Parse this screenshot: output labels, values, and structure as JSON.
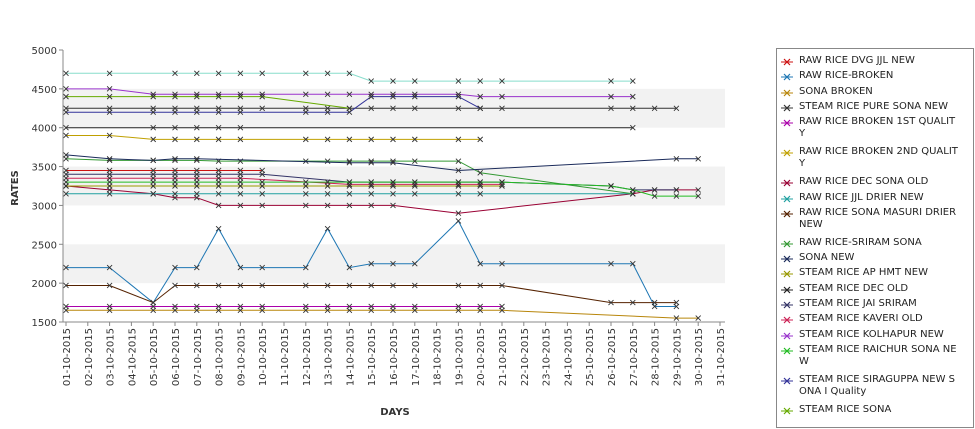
{
  "chart_data": {
    "type": "line",
    "title": "",
    "xlabel": "DAYS",
    "ylabel": "RATES",
    "ylim": [
      1500,
      5000
    ],
    "yticks": [
      1500,
      2000,
      2500,
      3000,
      3500,
      4000,
      4500,
      5000
    ],
    "x": [
      "01-10-2015",
      "02-10-2015",
      "03-10-2015",
      "04-10-2015",
      "05-10-2015",
      "06-10-2015",
      "07-10-2015",
      "08-10-2015",
      "09-10-2015",
      "10-10-2015",
      "11-10-2015",
      "12-10-2015",
      "13-10-2015",
      "14-10-2015",
      "15-10-2015",
      "16-10-2015",
      "17-10-2015",
      "18-10-2015",
      "19-10-2015",
      "20-10-2015",
      "21-10-2015",
      "22-10-2015",
      "23-10-2015",
      "24-10-2015",
      "25-10-2015",
      "26-10-2015",
      "27-10-2015",
      "28-10-2015",
      "29-10-2015",
      "30-10-2015",
      "31-10-2015"
    ],
    "grid": "alternating horizontal bands",
    "legend_position": "right",
    "series": [
      {
        "name": "RAW RICE DVG JJL NEW",
        "color": "#cc1111",
        "values": [
          3450,
          null,
          3450,
          null,
          3450,
          3450,
          3450,
          3450,
          3450,
          3450,
          null,
          null,
          null,
          null,
          null,
          null,
          null,
          null,
          null,
          null,
          null,
          null,
          null,
          null,
          null,
          null,
          null,
          null,
          null,
          null,
          null
        ]
      },
      {
        "name": "RAW RICE-BROKEN",
        "color": "#1f77b4",
        "values": [
          2200,
          null,
          2200,
          null,
          1750,
          2200,
          2200,
          2700,
          2200,
          2200,
          null,
          2200,
          2700,
          2200,
          2250,
          2250,
          2250,
          null,
          2800,
          2250,
          2250,
          null,
          null,
          null,
          null,
          2250,
          2250,
          1700,
          1700,
          null,
          null
        ]
      },
      {
        "name": "SONA BROKEN",
        "color": "#b8860b",
        "values": [
          1650,
          null,
          1650,
          null,
          1650,
          1650,
          1650,
          1650,
          1650,
          1650,
          null,
          1650,
          1650,
          1650,
          1650,
          1650,
          1650,
          null,
          1650,
          1650,
          1650,
          null,
          null,
          null,
          null,
          null,
          null,
          null,
          1550,
          1550,
          null
        ]
      },
      {
        "name": "STEAM RICE PURE SONA NEW",
        "color": "#333333",
        "values": [
          4250,
          null,
          4250,
          null,
          4250,
          4250,
          4250,
          4250,
          4250,
          4250,
          null,
          4250,
          4250,
          4250,
          4250,
          4250,
          4250,
          null,
          4250,
          4250,
          4250,
          null,
          null,
          null,
          null,
          4250,
          4250,
          4250,
          4250,
          null,
          null
        ]
      },
      {
        "name": "RAW RICE BROKEN 1ST QUALITY",
        "color": "#aa00aa",
        "values": [
          1700,
          null,
          1700,
          null,
          1700,
          1700,
          1700,
          1700,
          1700,
          1700,
          null,
          1700,
          1700,
          1700,
          1700,
          1700,
          1700,
          null,
          1700,
          1700,
          1700,
          null,
          null,
          null,
          null,
          null,
          null,
          null,
          null,
          null,
          null
        ]
      },
      {
        "name": "RAW RICE BROKEN 2ND QUALITY",
        "color": "#c0a000",
        "values": [
          3900,
          null,
          3900,
          null,
          3850,
          3850,
          3850,
          3850,
          3850,
          null,
          null,
          3850,
          3850,
          3850,
          3850,
          3850,
          3850,
          null,
          3850,
          3850,
          null,
          null,
          null,
          null,
          null,
          null,
          null,
          null,
          null,
          null,
          null
        ]
      },
      {
        "name": "RAW RICE DEC SONA OLD",
        "color": "#990033",
        "values": [
          3250,
          null,
          3200,
          null,
          3150,
          3100,
          3100,
          3000,
          3000,
          3000,
          null,
          3000,
          3000,
          3000,
          3000,
          3000,
          null,
          null,
          2900,
          null,
          null,
          null,
          null,
          null,
          null,
          null,
          3150,
          3200,
          3200,
          3200,
          null
        ]
      },
      {
        "name": "RAW RICE JJL DRIER NEW",
        "color": "#20a0a0",
        "values": [
          3150,
          null,
          3150,
          null,
          3150,
          3150,
          3150,
          3150,
          3150,
          3150,
          null,
          3150,
          3150,
          3150,
          3150,
          3150,
          3150,
          null,
          3150,
          3150,
          null,
          null,
          null,
          null,
          null,
          null,
          3150,
          null,
          null,
          null,
          null
        ]
      },
      {
        "name": "RAW RICE SONA MASURI DRIER NEW",
        "color": "#552200",
        "values": [
          1970,
          null,
          1970,
          null,
          1750,
          1970,
          1970,
          1970,
          1970,
          1970,
          null,
          1970,
          1970,
          1970,
          1970,
          1970,
          1970,
          null,
          1970,
          1970,
          1970,
          null,
          null,
          null,
          null,
          1750,
          1750,
          1750,
          1750,
          null,
          null
        ]
      },
      {
        "name": "RAW RICE-SRIRAM SONA",
        "color": "#339933",
        "values": [
          3600,
          null,
          3580,
          null,
          3580,
          3580,
          3580,
          3570,
          3570,
          null,
          null,
          3570,
          3570,
          3570,
          3570,
          3570,
          3570,
          null,
          3570,
          3420,
          null,
          null,
          null,
          null,
          null,
          null,
          3150,
          null,
          null,
          null,
          null
        ]
      },
      {
        "name": "SONA NEW",
        "color": "#1a2a5a",
        "values": [
          3650,
          null,
          3600,
          null,
          3580,
          3600,
          3600,
          null,
          null,
          null,
          null,
          null,
          null,
          3550,
          3550,
          3550,
          null,
          null,
          3450,
          null,
          null,
          null,
          null,
          null,
          null,
          null,
          null,
          null,
          3600,
          3600,
          null
        ]
      },
      {
        "name": "STEAM RICE AP HMT NEW",
        "color": "#999900",
        "values": [
          3250,
          null,
          3250,
          null,
          3250,
          3250,
          3250,
          3250,
          3250,
          3250,
          null,
          3250,
          3250,
          3250,
          3250,
          3250,
          3250,
          null,
          3250,
          3250,
          3250,
          null,
          null,
          null,
          null,
          null,
          null,
          null,
          null,
          null,
          null
        ]
      },
      {
        "name": "STEAM RICE DEC OLD",
        "color": "#222222",
        "values": [
          4000,
          null,
          null,
          null,
          4000,
          4000,
          4000,
          4000,
          4000,
          null,
          null,
          null,
          null,
          null,
          null,
          null,
          null,
          null,
          null,
          null,
          null,
          null,
          null,
          null,
          null,
          null,
          4000,
          null,
          null,
          null,
          null
        ]
      },
      {
        "name": "STEAM RICE JAI SRIRAM",
        "color": "#333366",
        "values": [
          3400,
          null,
          3400,
          null,
          3400,
          3400,
          3400,
          3400,
          3400,
          3400,
          null,
          null,
          null,
          3300,
          3300,
          3300,
          3300,
          null,
          3300,
          3300,
          3300,
          null,
          null,
          null,
          null,
          3250,
          3200,
          3200,
          3200,
          null,
          null
        ]
      },
      {
        "name": "STEAM RICE KAVERI OLD",
        "color": "#cc2255",
        "values": [
          3350,
          null,
          3350,
          null,
          3350,
          3350,
          3350,
          3350,
          3350,
          null,
          null,
          null,
          null,
          3270,
          3270,
          3270,
          3270,
          null,
          3270,
          3270,
          3270,
          null,
          null,
          null,
          null,
          null,
          null,
          null,
          null,
          null,
          null
        ]
      },
      {
        "name": "STEAM RICE KOLHAPUR NEW",
        "color": "#9933cc",
        "values": [
          4500,
          null,
          4500,
          null,
          4430,
          4430,
          4430,
          4430,
          4430,
          4430,
          null,
          4430,
          4430,
          4430,
          4430,
          4430,
          4430,
          null,
          4430,
          4400,
          4400,
          null,
          null,
          null,
          null,
          4400,
          4400,
          null,
          null,
          null,
          null
        ]
      },
      {
        "name": "STEAM RICE RAICHUR SONA NEW",
        "color": "#22bb22",
        "values": [
          3300,
          null,
          3300,
          null,
          3300,
          3300,
          3300,
          3300,
          3300,
          3300,
          null,
          3300,
          3300,
          3300,
          3300,
          3300,
          3300,
          null,
          3300,
          3300,
          3300,
          null,
          null,
          null,
          null,
          3250,
          3200,
          3120,
          3120,
          3120,
          null
        ]
      },
      {
        "name": "STEAM RICE SIRAGUPPA NEW SONA I Quality",
        "color": "#333399",
        "values": [
          4200,
          null,
          4200,
          null,
          4200,
          4200,
          4200,
          4200,
          4200,
          null,
          null,
          4200,
          4200,
          4200,
          4400,
          4400,
          4400,
          null,
          4400,
          4250,
          null,
          null,
          null,
          null,
          null,
          null,
          null,
          null,
          null,
          null,
          null
        ]
      },
      {
        "name": "STEAM RICE SONA",
        "color": "#66aa00",
        "values": [
          4400,
          null,
          4400,
          null,
          4400,
          4400,
          4400,
          4400,
          4400,
          4400,
          null,
          null,
          null,
          4250,
          null,
          null,
          null,
          null,
          null,
          null,
          null,
          null,
          null,
          null,
          null,
          null,
          null,
          null,
          null,
          null,
          null
        ]
      },
      {
        "name": "",
        "color": "#88ddcc",
        "values": [
          4700,
          null,
          4700,
          null,
          null,
          4700,
          4700,
          4700,
          4700,
          4700,
          null,
          4700,
          4700,
          4700,
          4600,
          4600,
          4600,
          null,
          4600,
          4600,
          4600,
          null,
          null,
          null,
          null,
          4600,
          4600,
          null,
          null,
          null,
          null
        ]
      }
    ]
  }
}
